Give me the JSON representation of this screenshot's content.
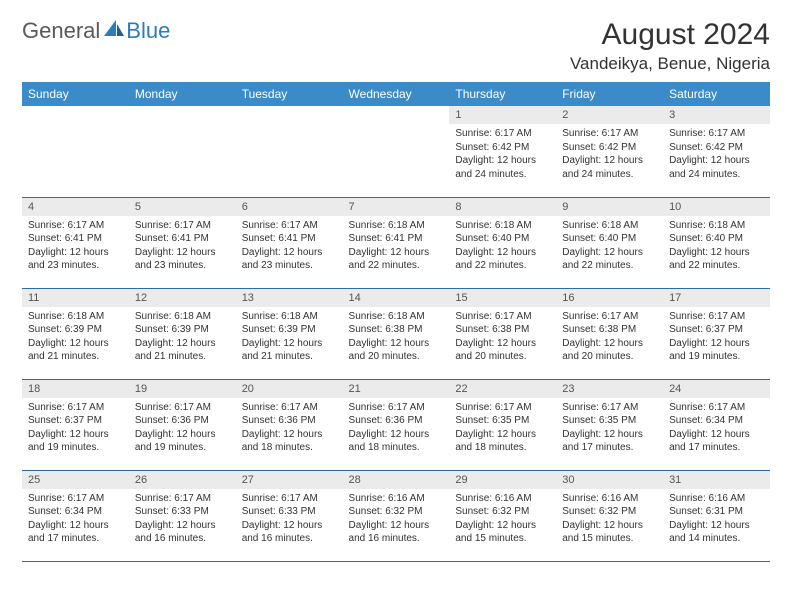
{
  "logo": {
    "text1": "General",
    "text2": "Blue"
  },
  "title": "August 2024",
  "location": "Vandeikya, Benue, Nigeria",
  "colors": {
    "header_bg": "#3b8bc8",
    "header_text": "#ffffff",
    "daynum_bg": "#ebebeb",
    "border": "#2e6da4",
    "logo_gray": "#5a5a5a",
    "logo_blue": "#2b7bbd"
  },
  "day_headers": [
    "Sunday",
    "Monday",
    "Tuesday",
    "Wednesday",
    "Thursday",
    "Friday",
    "Saturday"
  ],
  "weeks": [
    [
      null,
      null,
      null,
      null,
      {
        "n": "1",
        "sr": "6:17 AM",
        "ss": "6:42 PM",
        "dl": "12 hours and 24 minutes."
      },
      {
        "n": "2",
        "sr": "6:17 AM",
        "ss": "6:42 PM",
        "dl": "12 hours and 24 minutes."
      },
      {
        "n": "3",
        "sr": "6:17 AM",
        "ss": "6:42 PM",
        "dl": "12 hours and 24 minutes."
      }
    ],
    [
      {
        "n": "4",
        "sr": "6:17 AM",
        "ss": "6:41 PM",
        "dl": "12 hours and 23 minutes."
      },
      {
        "n": "5",
        "sr": "6:17 AM",
        "ss": "6:41 PM",
        "dl": "12 hours and 23 minutes."
      },
      {
        "n": "6",
        "sr": "6:17 AM",
        "ss": "6:41 PM",
        "dl": "12 hours and 23 minutes."
      },
      {
        "n": "7",
        "sr": "6:18 AM",
        "ss": "6:41 PM",
        "dl": "12 hours and 22 minutes."
      },
      {
        "n": "8",
        "sr": "6:18 AM",
        "ss": "6:40 PM",
        "dl": "12 hours and 22 minutes."
      },
      {
        "n": "9",
        "sr": "6:18 AM",
        "ss": "6:40 PM",
        "dl": "12 hours and 22 minutes."
      },
      {
        "n": "10",
        "sr": "6:18 AM",
        "ss": "6:40 PM",
        "dl": "12 hours and 22 minutes."
      }
    ],
    [
      {
        "n": "11",
        "sr": "6:18 AM",
        "ss": "6:39 PM",
        "dl": "12 hours and 21 minutes."
      },
      {
        "n": "12",
        "sr": "6:18 AM",
        "ss": "6:39 PM",
        "dl": "12 hours and 21 minutes."
      },
      {
        "n": "13",
        "sr": "6:18 AM",
        "ss": "6:39 PM",
        "dl": "12 hours and 21 minutes."
      },
      {
        "n": "14",
        "sr": "6:18 AM",
        "ss": "6:38 PM",
        "dl": "12 hours and 20 minutes."
      },
      {
        "n": "15",
        "sr": "6:17 AM",
        "ss": "6:38 PM",
        "dl": "12 hours and 20 minutes."
      },
      {
        "n": "16",
        "sr": "6:17 AM",
        "ss": "6:38 PM",
        "dl": "12 hours and 20 minutes."
      },
      {
        "n": "17",
        "sr": "6:17 AM",
        "ss": "6:37 PM",
        "dl": "12 hours and 19 minutes."
      }
    ],
    [
      {
        "n": "18",
        "sr": "6:17 AM",
        "ss": "6:37 PM",
        "dl": "12 hours and 19 minutes."
      },
      {
        "n": "19",
        "sr": "6:17 AM",
        "ss": "6:36 PM",
        "dl": "12 hours and 19 minutes."
      },
      {
        "n": "20",
        "sr": "6:17 AM",
        "ss": "6:36 PM",
        "dl": "12 hours and 18 minutes."
      },
      {
        "n": "21",
        "sr": "6:17 AM",
        "ss": "6:36 PM",
        "dl": "12 hours and 18 minutes."
      },
      {
        "n": "22",
        "sr": "6:17 AM",
        "ss": "6:35 PM",
        "dl": "12 hours and 18 minutes."
      },
      {
        "n": "23",
        "sr": "6:17 AM",
        "ss": "6:35 PM",
        "dl": "12 hours and 17 minutes."
      },
      {
        "n": "24",
        "sr": "6:17 AM",
        "ss": "6:34 PM",
        "dl": "12 hours and 17 minutes."
      }
    ],
    [
      {
        "n": "25",
        "sr": "6:17 AM",
        "ss": "6:34 PM",
        "dl": "12 hours and 17 minutes."
      },
      {
        "n": "26",
        "sr": "6:17 AM",
        "ss": "6:33 PM",
        "dl": "12 hours and 16 minutes."
      },
      {
        "n": "27",
        "sr": "6:17 AM",
        "ss": "6:33 PM",
        "dl": "12 hours and 16 minutes."
      },
      {
        "n": "28",
        "sr": "6:16 AM",
        "ss": "6:32 PM",
        "dl": "12 hours and 16 minutes."
      },
      {
        "n": "29",
        "sr": "6:16 AM",
        "ss": "6:32 PM",
        "dl": "12 hours and 15 minutes."
      },
      {
        "n": "30",
        "sr": "6:16 AM",
        "ss": "6:32 PM",
        "dl": "12 hours and 15 minutes."
      },
      {
        "n": "31",
        "sr": "6:16 AM",
        "ss": "6:31 PM",
        "dl": "12 hours and 14 minutes."
      }
    ]
  ],
  "labels": {
    "sunrise": "Sunrise:",
    "sunset": "Sunset:",
    "daylight": "Daylight:"
  }
}
